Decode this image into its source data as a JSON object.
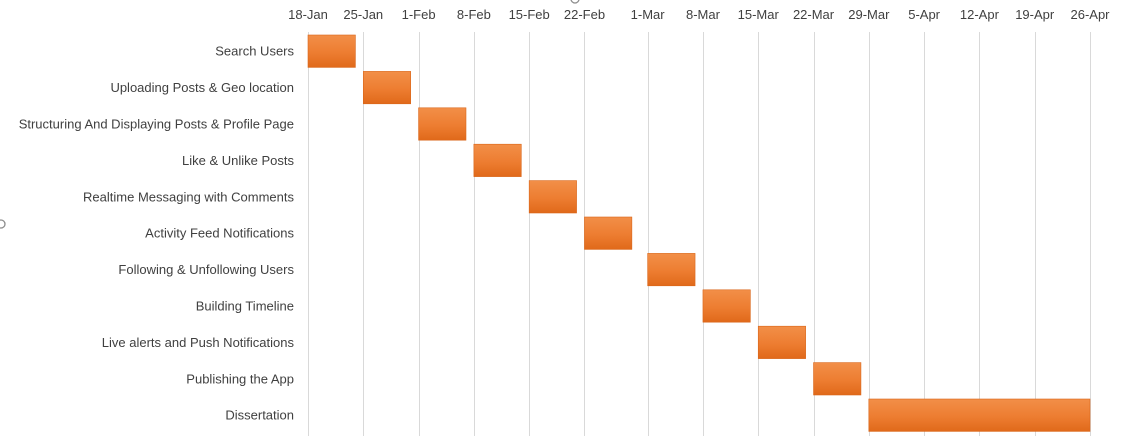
{
  "chart_data": {
    "type": "bar",
    "orientation": "horizontal",
    "subtype": "gantt",
    "title": "",
    "xlabel": "",
    "ylabel": "",
    "x_ticks": [
      "18-Jan",
      "25-Jan",
      "1-Feb",
      "8-Feb",
      "15-Feb",
      "22-Feb",
      "1-Mar",
      "8-Mar",
      "15-Mar",
      "22-Mar",
      "29-Mar",
      "5-Apr",
      "12-Apr",
      "19-Apr",
      "26-Apr"
    ],
    "xlim": [
      "18-Jan",
      "26-Apr"
    ],
    "x_axis_position": "top",
    "grid": "vertical",
    "legend": "none",
    "bar_color": "#ed7d31",
    "tasks": [
      {
        "name": "Search Users",
        "start": "18-Jan",
        "end": "24-Jan"
      },
      {
        "name": "Uploading Posts & Geo location",
        "start": "25-Jan",
        "end": "31-Jan"
      },
      {
        "name": "Structuring And Displaying Posts & Profile Page",
        "start": "1-Feb",
        "end": "7-Feb"
      },
      {
        "name": "Like & Unlike Posts",
        "start": "8-Feb",
        "end": "14-Feb"
      },
      {
        "name": "Realtime Messaging with Comments",
        "start": "15-Feb",
        "end": "21-Feb"
      },
      {
        "name": "Activity Feed Notifications",
        "start": "22-Feb",
        "end": "28-Feb"
      },
      {
        "name": "Following & Unfollowing Users",
        "start": "1-Mar",
        "end": "7-Mar"
      },
      {
        "name": "Building Timeline",
        "start": "8-Mar",
        "end": "14-Mar"
      },
      {
        "name": "Live alerts and Push Notifications",
        "start": "15-Mar",
        "end": "21-Mar"
      },
      {
        "name": "Publishing the App",
        "start": "22-Mar",
        "end": "28-Mar"
      },
      {
        "name": "Dissertation",
        "start": "29-Mar",
        "end": "26-Apr"
      }
    ]
  }
}
